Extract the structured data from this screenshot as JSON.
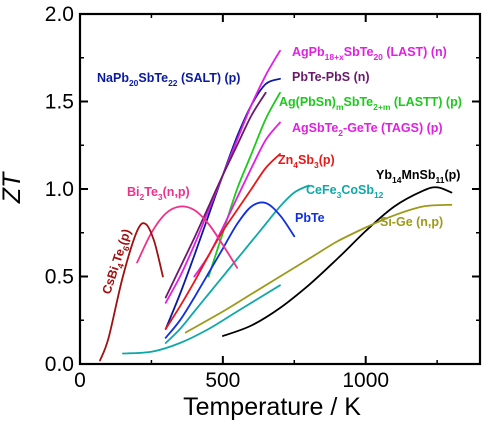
{
  "chart_data": {
    "type": "line",
    "title": "",
    "xlabel": "Temperature / K",
    "ylabel": "ZT",
    "xlim": [
      0,
      1400
    ],
    "ylim": [
      0,
      2.0
    ],
    "xticks": [
      0,
      500,
      1000
    ],
    "yticks": [
      0.0,
      0.5,
      1.0,
      1.5,
      2.0
    ],
    "xtick_labels": [
      "0",
      "500",
      "1000"
    ],
    "ytick_labels": [
      "0.0",
      "0.5",
      "1.0",
      "1.5",
      "2.0"
    ],
    "grid": false,
    "legend": "inline labels",
    "series": [
      {
        "name": "NaPb20SbTe22 (SALT) (p)",
        "label": {
          "base": "NaPb",
          "parts": [
            [
              "sub",
              "20"
            ],
            [
              "",
              "SbTe"
            ],
            [
              "sub",
              "22"
            ],
            [
              "",
              " (SALT) (p)"
            ]
          ]
        },
        "color": "#0a1aa0",
        "x": [
          300,
          350,
          400,
          450,
          500,
          550,
          600,
          650,
          700
        ],
        "y": [
          0.2,
          0.4,
          0.62,
          0.85,
          1.08,
          1.3,
          1.48,
          1.6,
          1.63
        ]
      },
      {
        "name": "AgPb18+xSbTe20 (LAST) (n)",
        "label": {
          "base": "AgPb",
          "parts": [
            [
              "sub",
              "18+x"
            ],
            [
              "",
              "SbTe"
            ],
            [
              "sub",
              "20"
            ],
            [
              "",
              " (LAST) (n)"
            ]
          ]
        },
        "color": "#e020e0",
        "x": [
          300,
          350,
          400,
          450,
          500,
          550,
          600,
          650,
          700
        ],
        "y": [
          0.35,
          0.5,
          0.68,
          0.88,
          1.08,
          1.28,
          1.48,
          1.65,
          1.79
        ]
      },
      {
        "name": "PbTe-PbS (n)",
        "label": {
          "base": "PbTe-PbS (n)",
          "parts": []
        },
        "color": "#6a1a6a",
        "x": [
          300,
          350,
          400,
          450,
          500,
          550,
          600,
          650
        ],
        "y": [
          0.38,
          0.55,
          0.72,
          0.9,
          1.08,
          1.25,
          1.42,
          1.55
        ]
      },
      {
        "name": "Ag(PbSn)mSbTe2+m (LASTT) (p)",
        "label": {
          "base": "Ag(PbSn)",
          "parts": [
            [
              "sub",
              "m"
            ],
            [
              "",
              "SbTe"
            ],
            [
              "sub",
              "2+m"
            ],
            [
              "",
              " (LASTT) (p)"
            ]
          ]
        },
        "color": "#1ec81e",
        "x": [
          450,
          500,
          550,
          600,
          650,
          700
        ],
        "y": [
          0.5,
          0.75,
          1.0,
          1.2,
          1.4,
          1.55
        ]
      },
      {
        "name": "AgSbTe2-GeTe (TAGS) (p)",
        "label": {
          "base": "AgSbTe",
          "parts": [
            [
              "sub",
              "2"
            ],
            [
              "",
              "-GeTe (TAGS) (p)"
            ]
          ]
        },
        "color": "#e020e0",
        "x": [
          400,
          450,
          500,
          550,
          600,
          650,
          700
        ],
        "y": [
          0.5,
          0.62,
          0.78,
          0.95,
          1.12,
          1.28,
          1.38
        ]
      },
      {
        "name": "Zn4Sb3 (p)",
        "label": {
          "base": "Zn",
          "parts": [
            [
              "sub",
              "4"
            ],
            [
              "",
              "Sb"
            ],
            [
              "sub",
              "3"
            ],
            [
              "",
              "(p)"
            ]
          ]
        },
        "color": "#e81818",
        "x": [
          300,
          350,
          400,
          450,
          500,
          550,
          600,
          650,
          700
        ],
        "y": [
          0.2,
          0.33,
          0.47,
          0.62,
          0.76,
          0.88,
          1.0,
          1.12,
          1.2
        ]
      },
      {
        "name": "CeFe3CoSb12",
        "label": {
          "base": "CeFe",
          "parts": [
            [
              "sub",
              "3"
            ],
            [
              "",
              "CoSb"
            ],
            [
              "sub",
              "12"
            ]
          ]
        },
        "color": "#10a8a8",
        "x": [
          300,
          350,
          400,
          450,
          500,
          550,
          600,
          650,
          700,
          750,
          800
        ],
        "y": [
          0.12,
          0.2,
          0.3,
          0.4,
          0.5,
          0.6,
          0.7,
          0.8,
          0.9,
          0.98,
          1.02
        ]
      },
      {
        "name": "PbTe",
        "label": {
          "base": "PbTe",
          "parts": []
        },
        "color": "#1030e0",
        "x": [
          300,
          350,
          400,
          450,
          500,
          550,
          600,
          650,
          700,
          750
        ],
        "y": [
          0.15,
          0.25,
          0.38,
          0.52,
          0.66,
          0.8,
          0.9,
          0.92,
          0.85,
          0.73
        ]
      },
      {
        "name": "Bi2Te3 (n,p)",
        "label": {
          "base": "Bi",
          "parts": [
            [
              "sub",
              "2"
            ],
            [
              "",
              "Te"
            ],
            [
              "sub",
              "3"
            ],
            [
              "",
              "(n,p)"
            ]
          ]
        },
        "color": "#f0308a",
        "x": [
          200,
          250,
          300,
          350,
          400,
          450,
          500,
          550
        ],
        "y": [
          0.58,
          0.75,
          0.86,
          0.9,
          0.88,
          0.8,
          0.68,
          0.55
        ]
      },
      {
        "name": "CsBi4Te6 (p)",
        "label": {
          "base": "CsBi",
          "parts": [
            [
              "sub",
              "4"
            ],
            [
              "",
              "Te"
            ],
            [
              "sub",
              "6"
            ],
            [
              "",
              "(p)"
            ]
          ]
        },
        "color": "#a01010",
        "x": [
          70,
          100,
          150,
          200,
          230,
          260,
          290
        ],
        "y": [
          0.02,
          0.15,
          0.5,
          0.76,
          0.8,
          0.7,
          0.5
        ]
      },
      {
        "name": "Yb14MnSb11 (p)",
        "label": {
          "base": "Yb",
          "parts": [
            [
              "sub",
              "14"
            ],
            [
              "",
              "MnSb"
            ],
            [
              "sub",
              "11"
            ],
            [
              "",
              "(p)"
            ]
          ]
        },
        "color": "#000000",
        "x": [
          500,
          600,
          700,
          800,
          900,
          1000,
          1100,
          1200,
          1250,
          1300
        ],
        "y": [
          0.16,
          0.22,
          0.32,
          0.45,
          0.6,
          0.76,
          0.9,
          0.99,
          1.01,
          0.98
        ]
      },
      {
        "name": "Si-Ge (n,p)",
        "label": {
          "base": "Si-Ge (n,p)",
          "parts": []
        },
        "color": "#9c9a18",
        "x": [
          370,
          500,
          600,
          700,
          800,
          900,
          1000,
          1100,
          1200,
          1300
        ],
        "y": [
          0.18,
          0.3,
          0.4,
          0.5,
          0.6,
          0.7,
          0.78,
          0.85,
          0.9,
          0.91
        ]
      },
      {
        "name": "(unlabeled baseline)",
        "label": {
          "base": "",
          "parts": []
        },
        "color": "#10a8a8",
        "x": [
          150,
          250,
          350,
          450,
          550,
          700
        ],
        "y": [
          0.06,
          0.07,
          0.12,
          0.2,
          0.3,
          0.45
        ]
      }
    ]
  }
}
